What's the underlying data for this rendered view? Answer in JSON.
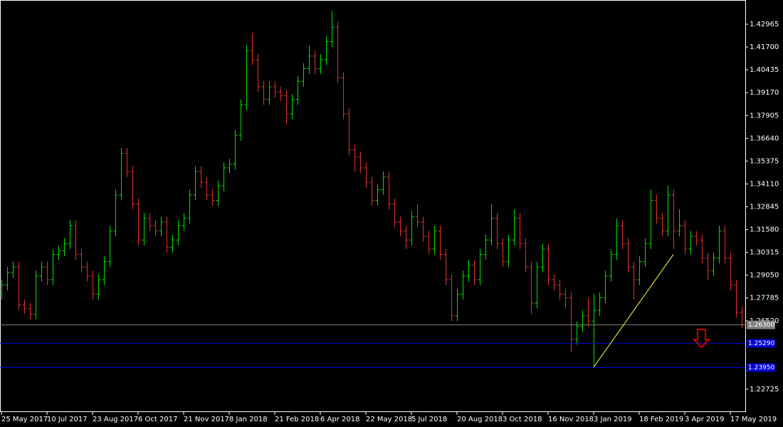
{
  "chart_data": {
    "type": "ohlc",
    "up_color": "#00e000",
    "down_color": "#e03030",
    "categories": [
      "25 May 2017",
      null,
      null,
      null,
      null,
      null,
      null,
      null,
      "10 Jul 2017",
      null,
      null,
      null,
      null,
      null,
      null,
      null,
      "23 Aug 2017",
      null,
      null,
      null,
      null,
      null,
      null,
      null,
      "6 Oct 2017",
      null,
      null,
      null,
      null,
      null,
      null,
      null,
      "21 Nov 2017",
      null,
      null,
      null,
      null,
      null,
      null,
      null,
      "8 Jan 2018",
      null,
      null,
      null,
      null,
      null,
      null,
      null,
      "21 Feb 2018",
      null,
      null,
      null,
      null,
      null,
      null,
      null,
      "6 Apr 2018",
      null,
      null,
      null,
      null,
      null,
      null,
      null,
      "22 May 2018",
      null,
      null,
      null,
      null,
      null,
      null,
      null,
      "5 Jul 2018",
      null,
      null,
      null,
      null,
      null,
      null,
      null,
      "20 Aug 2018",
      null,
      null,
      null,
      null,
      null,
      null,
      null,
      "3 Oct 2018",
      null,
      null,
      null,
      null,
      null,
      null,
      null,
      "16 Nov 2018",
      null,
      null,
      null,
      null,
      null,
      null,
      null,
      "3 Jan 2019",
      null,
      null,
      null,
      null,
      null,
      null,
      null,
      "18 Feb 2019",
      null,
      null,
      null,
      null,
      null,
      null,
      null,
      "3 Apr 2019",
      null,
      null,
      null,
      null,
      null,
      null,
      null,
      "17 May 2019",
      null,
      null
    ],
    "open": [
      1.28,
      1.285,
      1.292,
      1.295,
      1.274,
      1.272,
      1.269,
      1.29,
      1.295,
      1.288,
      1.302,
      1.304,
      1.308,
      1.318,
      1.302,
      1.295,
      1.29,
      1.28,
      1.288,
      1.298,
      1.315,
      1.335,
      1.358,
      1.348,
      1.33,
      1.31,
      1.322,
      1.318,
      1.315,
      1.32,
      1.306,
      1.31,
      1.318,
      1.322,
      1.335,
      1.348,
      1.342,
      1.335,
      1.332,
      1.34,
      1.35,
      1.352,
      1.368,
      1.385,
      1.415,
      1.41,
      1.395,
      1.388,
      1.395,
      1.392,
      1.39,
      1.38,
      1.388,
      1.398,
      1.405,
      1.412,
      1.405,
      1.41,
      1.42,
      1.428,
      1.4,
      1.38,
      1.36,
      1.356,
      1.35,
      1.342,
      1.332,
      1.338,
      1.345,
      1.33,
      1.32,
      1.315,
      1.31,
      1.323,
      1.32,
      1.312,
      1.305,
      1.315,
      1.302,
      1.288,
      1.268,
      1.28,
      1.29,
      1.296,
      1.288,
      1.302,
      1.31,
      1.322,
      1.308,
      1.298,
      1.31,
      1.322,
      1.308,
      1.295,
      1.275,
      1.295,
      1.305,
      1.288,
      1.285,
      1.28,
      1.278,
      1.255,
      1.262,
      1.268,
      1.265,
      1.271,
      1.278,
      1.29,
      1.302,
      1.318,
      1.308,
      1.295,
      1.288,
      1.298,
      1.308,
      1.332,
      1.322,
      1.315,
      1.335,
      1.315,
      1.318,
      1.305,
      1.312,
      1.31,
      1.3,
      1.293,
      1.3,
      1.315,
      1.3,
      1.285,
      1.27
    ],
    "high": [
      1.288,
      1.295,
      1.298,
      1.298,
      1.277,
      1.275,
      1.293,
      1.298,
      1.298,
      1.305,
      1.307,
      1.311,
      1.321,
      1.321,
      1.305,
      1.298,
      1.293,
      1.291,
      1.301,
      1.318,
      1.338,
      1.361,
      1.361,
      1.351,
      1.333,
      1.325,
      1.325,
      1.321,
      1.323,
      1.323,
      1.313,
      1.321,
      1.325,
      1.338,
      1.351,
      1.351,
      1.345,
      1.338,
      1.343,
      1.353,
      1.355,
      1.371,
      1.388,
      1.418,
      1.425,
      1.413,
      1.398,
      1.398,
      1.398,
      1.395,
      1.393,
      1.391,
      1.401,
      1.408,
      1.418,
      1.415,
      1.413,
      1.423,
      1.437,
      1.431,
      1.403,
      1.383,
      1.363,
      1.359,
      1.353,
      1.345,
      1.341,
      1.348,
      1.348,
      1.333,
      1.323,
      1.318,
      1.326,
      1.33,
      1.323,
      1.315,
      1.318,
      1.318,
      1.305,
      1.291,
      1.283,
      1.293,
      1.299,
      1.299,
      1.305,
      1.313,
      1.33,
      1.325,
      1.311,
      1.313,
      1.327,
      1.325,
      1.311,
      1.298,
      1.298,
      1.308,
      1.308,
      1.291,
      1.288,
      1.283,
      1.281,
      1.265,
      1.271,
      1.278,
      1.28,
      1.281,
      1.293,
      1.305,
      1.322,
      1.321,
      1.311,
      1.298,
      1.301,
      1.311,
      1.338,
      1.335,
      1.325,
      1.34,
      1.338,
      1.327,
      1.321,
      1.315,
      1.315,
      1.313,
      1.303,
      1.303,
      1.318,
      1.318,
      1.303,
      1.288,
      1.273
    ],
    "low": [
      1.277,
      1.282,
      1.289,
      1.271,
      1.269,
      1.266,
      1.266,
      1.287,
      1.285,
      1.285,
      1.299,
      1.301,
      1.305,
      1.299,
      1.292,
      1.287,
      1.277,
      1.277,
      1.285,
      1.295,
      1.312,
      1.332,
      1.345,
      1.327,
      1.307,
      1.307,
      1.315,
      1.312,
      1.312,
      1.303,
      1.303,
      1.307,
      1.315,
      1.319,
      1.332,
      1.339,
      1.332,
      1.329,
      1.329,
      1.337,
      1.347,
      1.349,
      1.365,
      1.382,
      1.407,
      1.392,
      1.385,
      1.385,
      1.389,
      1.387,
      1.374,
      1.377,
      1.385,
      1.395,
      1.402,
      1.402,
      1.402,
      1.407,
      1.417,
      1.397,
      1.377,
      1.357,
      1.348,
      1.347,
      1.339,
      1.329,
      1.329,
      1.335,
      1.327,
      1.317,
      1.312,
      1.305,
      1.307,
      1.317,
      1.309,
      1.302,
      1.302,
      1.299,
      1.285,
      1.265,
      1.265,
      1.277,
      1.287,
      1.285,
      1.285,
      1.299,
      1.307,
      1.305,
      1.295,
      1.295,
      1.307,
      1.305,
      1.292,
      1.269,
      1.272,
      1.292,
      1.285,
      1.282,
      1.277,
      1.272,
      1.248,
      1.252,
      1.259,
      1.262,
      1.2395,
      1.268,
      1.275,
      1.287,
      1.299,
      1.305,
      1.292,
      1.277,
      1.285,
      1.295,
      1.305,
      1.319,
      1.312,
      1.312,
      1.305,
      1.312,
      1.302,
      1.302,
      1.307,
      1.297,
      1.288,
      1.29,
      1.297,
      1.297,
      1.282,
      1.267,
      1.261
    ],
    "close": [
      1.285,
      1.292,
      1.295,
      1.274,
      1.272,
      1.269,
      1.29,
      1.295,
      1.288,
      1.302,
      1.304,
      1.308,
      1.318,
      1.302,
      1.295,
      1.29,
      1.28,
      1.288,
      1.298,
      1.315,
      1.335,
      1.358,
      1.348,
      1.33,
      1.31,
      1.322,
      1.318,
      1.315,
      1.32,
      1.306,
      1.31,
      1.318,
      1.322,
      1.335,
      1.348,
      1.342,
      1.335,
      1.332,
      1.34,
      1.35,
      1.352,
      1.368,
      1.385,
      1.415,
      1.41,
      1.395,
      1.388,
      1.395,
      1.392,
      1.39,
      1.38,
      1.388,
      1.398,
      1.405,
      1.412,
      1.405,
      1.41,
      1.42,
      1.428,
      1.4,
      1.38,
      1.36,
      1.356,
      1.35,
      1.342,
      1.332,
      1.338,
      1.345,
      1.33,
      1.32,
      1.315,
      1.31,
      1.323,
      1.32,
      1.312,
      1.305,
      1.315,
      1.302,
      1.288,
      1.268,
      1.28,
      1.29,
      1.296,
      1.288,
      1.302,
      1.31,
      1.322,
      1.308,
      1.298,
      1.31,
      1.322,
      1.308,
      1.295,
      1.275,
      1.295,
      1.305,
      1.288,
      1.285,
      1.28,
      1.278,
      1.255,
      1.262,
      1.268,
      1.265,
      1.271,
      1.278,
      1.29,
      1.302,
      1.318,
      1.308,
      1.295,
      1.288,
      1.298,
      1.308,
      1.332,
      1.322,
      1.315,
      1.335,
      1.315,
      1.318,
      1.305,
      1.312,
      1.31,
      1.3,
      1.293,
      1.3,
      1.315,
      1.3,
      1.285,
      1.27,
      1.263
    ],
    "ylim": [
      1.215,
      1.4423
    ],
    "yticks": [
      1.42965,
      {
        "value": 1.417,
        "label": "1.41700"
      },
      1.40435,
      {
        "value": 1.3917,
        "label": "1.39170"
      },
      1.37905,
      {
        "value": 1.3664,
        "label": "1.36640"
      },
      1.35375,
      {
        "value": 1.3411,
        "label": "1.34110"
      },
      1.32845,
      {
        "value": 1.3158,
        "label": "1.31580"
      },
      1.30315,
      {
        "value": 1.2905,
        "label": "1.29050"
      },
      1.27785,
      {
        "value": 1.2652,
        "label": "1.26520"
      },
      1.22725
    ],
    "hlines": [
      {
        "value": 1.263,
        "label": "1.26300",
        "color": "#808080"
      },
      {
        "value": 1.2529,
        "label": "1.25290",
        "color": "#0000cd"
      },
      {
        "value": 1.2395,
        "label": "1.23950",
        "color": "#0000cd"
      }
    ],
    "trendline": {
      "x": [
        104,
        118
      ],
      "y": [
        1.2395,
        1.302
      ],
      "color": "#ffff40"
    }
  }
}
